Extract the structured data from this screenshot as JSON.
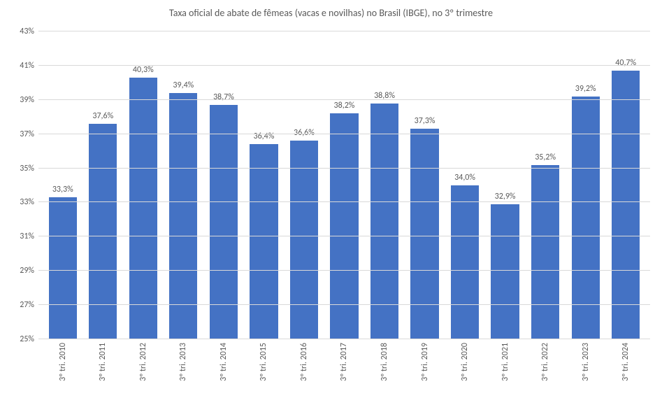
{
  "chart": {
    "type": "bar",
    "title": "Taxa oficial de abate de fêmeas (vacas e novilhas) no Brasil (IBGE), no 3º trimestre",
    "title_fontsize": 14,
    "title_color": "#595959",
    "background_color": "#ffffff",
    "grid_color": "#d9d9d9",
    "bar_color": "#4472c4",
    "bar_width": 0.7,
    "label_fontsize": 12,
    "label_color": "#595959",
    "y_axis": {
      "min": 25,
      "max": 43,
      "step": 2,
      "suffix": "%",
      "ticks": [
        {
          "v": 25,
          "label": "25%"
        },
        {
          "v": 27,
          "label": "27%"
        },
        {
          "v": 29,
          "label": "29%"
        },
        {
          "v": 31,
          "label": "31%"
        },
        {
          "v": 33,
          "label": "33%"
        },
        {
          "v": 35,
          "label": "35%"
        },
        {
          "v": 37,
          "label": "37%"
        },
        {
          "v": 39,
          "label": "39%"
        },
        {
          "v": 41,
          "label": "41%"
        },
        {
          "v": 43,
          "label": "43%"
        }
      ]
    },
    "data": [
      {
        "category": "3º tri. 2010",
        "value": 33.3,
        "label": "33,3%"
      },
      {
        "category": "3º tri. 2011",
        "value": 37.6,
        "label": "37,6%"
      },
      {
        "category": "3º tri. 2012",
        "value": 40.3,
        "label": "40,3%"
      },
      {
        "category": "3º tri. 2013",
        "value": 39.4,
        "label": "39,4%"
      },
      {
        "category": "3º tri. 2014",
        "value": 38.7,
        "label": "38,7%"
      },
      {
        "category": "3º tri. 2015",
        "value": 36.4,
        "label": "36,4%"
      },
      {
        "category": "3º tri. 2016",
        "value": 36.6,
        "label": "36,6%"
      },
      {
        "category": "3º tri. 2017",
        "value": 38.2,
        "label": "38,2%"
      },
      {
        "category": "3º tri. 2018",
        "value": 38.8,
        "label": "38,8%"
      },
      {
        "category": "3º tri. 2019",
        "value": 37.3,
        "label": "37,3%"
      },
      {
        "category": "3º tri. 2020",
        "value": 34.0,
        "label": "34,0%"
      },
      {
        "category": "3º tri. 2021",
        "value": 32.9,
        "label": "32,9%"
      },
      {
        "category": "3º tri. 2022",
        "value": 35.2,
        "label": "35,2%"
      },
      {
        "category": "3º tri. 2023",
        "value": 39.2,
        "label": "39,2%"
      },
      {
        "category": "3º tri. 2024",
        "value": 40.7,
        "label": "40,7%"
      }
    ]
  }
}
